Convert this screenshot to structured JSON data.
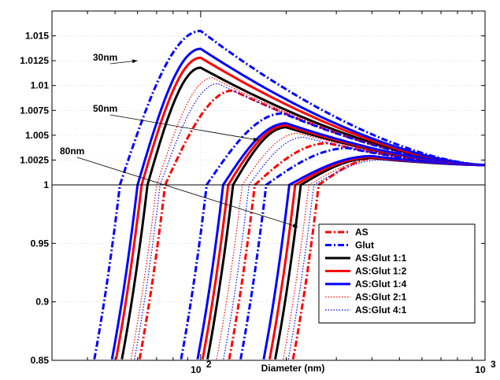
{
  "chart_data": {
    "type": "line",
    "title": "",
    "xlabel": "Diameter (nm)",
    "ylabel": "",
    "xscale": "log",
    "xlim": [
      30,
      1000
    ],
    "ylim": [
      0.85,
      1.0175
    ],
    "ylim_note": "piecewise y-axis: 0.85–1 and 1–1.0175 use different scales",
    "x_tick_labels": [
      "10",
      "10"
    ],
    "x_tick_exponents": [
      "2",
      "3"
    ],
    "x_tick_values": [
      100,
      1000
    ],
    "y_tick_labels": [
      "0.85",
      "0.9",
      "0.95",
      "1",
      "1.0025",
      "1.005",
      "1.0075",
      "1.01",
      "1.0125",
      "1.015"
    ],
    "y_tick_values": [
      0.85,
      0.9,
      0.95,
      1,
      1.0025,
      1.005,
      1.0075,
      1.01,
      1.0125,
      1.015
    ],
    "grid": true,
    "legend_position": "bottom-right",
    "annotations": [
      {
        "text": "30nm",
        "target_x": 60,
        "target_y": 1.0125
      },
      {
        "text": "50nm",
        "target_x": 160,
        "target_y": 1.0045
      },
      {
        "text": "80nm",
        "target_x": 220,
        "target_y": 0.964
      }
    ],
    "series": [
      {
        "name": "AS",
        "color": "#ff0000",
        "style": "dashdot",
        "dry_sizes": [
          30,
          50,
          80
        ],
        "gmax": [
          1.0095,
          1.0042,
          1.0028
        ],
        "peak_x": [
          130,
          280,
          430
        ],
        "d_one": [
          75,
          155,
          260
        ]
      },
      {
        "name": "Glut",
        "color": "#0000ff",
        "style": "dashdot",
        "dry_sizes": [
          30,
          50,
          80
        ],
        "gmax": [
          1.0155,
          1.0072,
          1.0037
        ],
        "peak_x": [
          100,
          195,
          330
        ],
        "d_one": [
          52,
          105,
          170
        ]
      },
      {
        "name": "AS:Glut 1:1",
        "color": "#000000",
        "style": "solid",
        "dry_sizes": [
          30,
          50,
          80
        ],
        "gmax": [
          1.0118,
          1.0058,
          1.0027
        ],
        "peak_x": [
          100,
          200,
          400
        ],
        "d_one": [
          65,
          130,
          225
        ]
      },
      {
        "name": "AS:Glut 1:2",
        "color": "#ff0000",
        "style": "solid",
        "dry_sizes": [
          30,
          50,
          80
        ],
        "gmax": [
          1.0128,
          1.006,
          1.0028
        ],
        "peak_x": [
          100,
          200,
          400
        ],
        "d_one": [
          62,
          125,
          215
        ]
      },
      {
        "name": "AS:Glut 1:4",
        "color": "#0000ff",
        "style": "solid",
        "dry_sizes": [
          30,
          50,
          80
        ],
        "gmax": [
          1.0137,
          1.0062,
          1.0029
        ],
        "peak_x": [
          100,
          200,
          400
        ],
        "d_one": [
          60,
          120,
          205
        ]
      },
      {
        "name": "AS:Glut 2:1",
        "color": "#ff0000",
        "style": "dotted",
        "dry_sizes": [
          30,
          50,
          80
        ],
        "gmax": [
          1.0108,
          1.0052,
          1.0026
        ],
        "peak_x": [
          110,
          220,
          420
        ],
        "d_one": [
          70,
          140,
          240
        ]
      },
      {
        "name": "AS:Glut 4:1",
        "color": "#0000ff",
        "style": "dotted",
        "dry_sizes": [
          30,
          50,
          80
        ],
        "gmax": [
          1.0102,
          1.0048,
          1.0025
        ],
        "peak_x": [
          115,
          230,
          430
        ],
        "d_one": [
          72,
          148,
          250
        ]
      }
    ]
  }
}
